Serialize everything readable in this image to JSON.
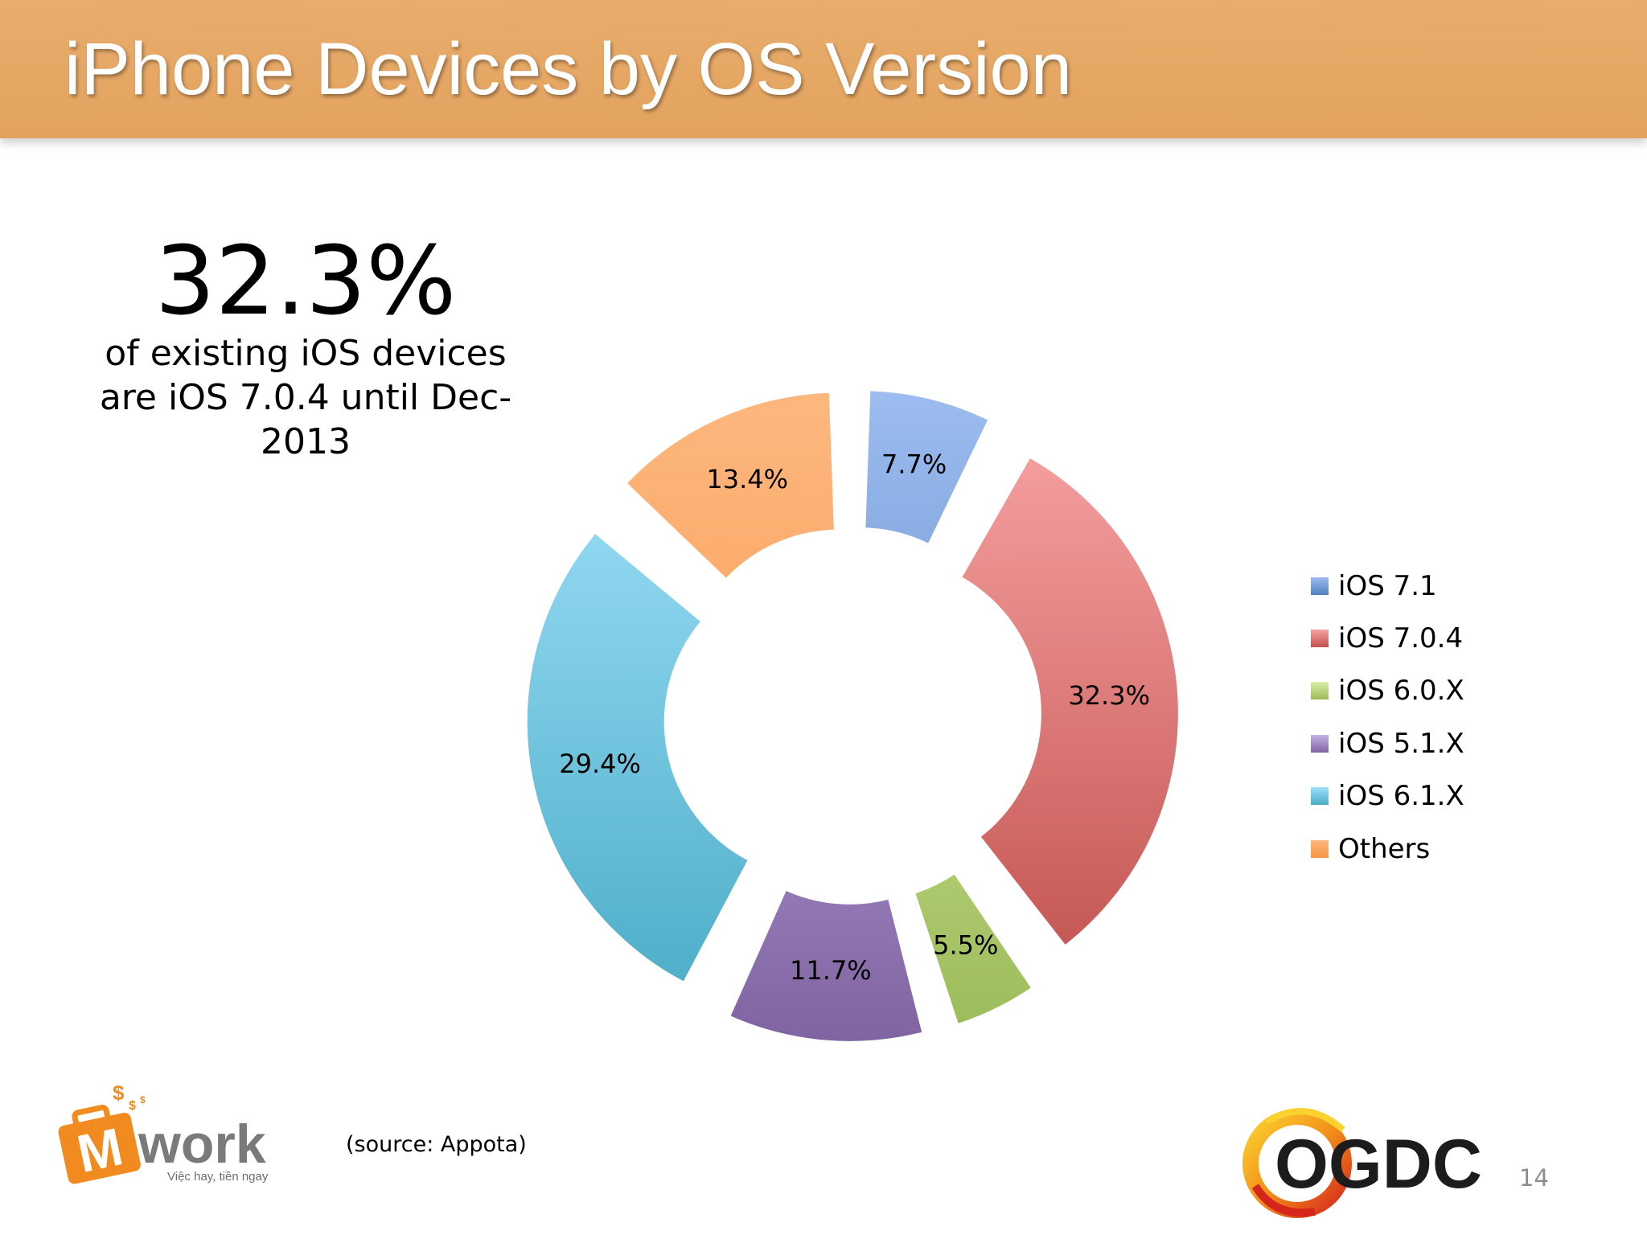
{
  "slide": {
    "title": "iPhone Devices by OS Version",
    "page_number": "14",
    "source_note": "(source: Appota)"
  },
  "highlight": {
    "value": "32.3%",
    "caption_line1": "of existing iOS devices",
    "caption_line2": "are iOS 7.0.4 until Dec-",
    "caption_line3": "2013"
  },
  "logos": {
    "mwork": {
      "wordmark": "Mwork",
      "tagline": "Việc hay, tiền ngay"
    },
    "ogdc": {
      "wordmark": "OGDC"
    }
  },
  "chart_data": {
    "type": "pie",
    "style": "exploded-doughnut",
    "categories": [
      "iOS 7.1",
      "iOS 7.0.4",
      "iOS 6.0.X",
      "iOS 5.1.X",
      "iOS 6.1.X",
      "Others"
    ],
    "values": [
      7.7,
      32.3,
      5.5,
      11.7,
      29.4,
      13.4
    ],
    "data_labels": [
      "7.7%",
      "32.3%",
      "5.5%",
      "11.7%",
      "29.4%",
      "13.4%"
    ],
    "colors": [
      "#4f81bd",
      "#c0504d",
      "#9bbb59",
      "#8064a2",
      "#4bacc6",
      "#f79646"
    ],
    "highlight_colors": [
      "#9dbcf0",
      "#f7a3a3",
      "#d9f0a7",
      "#c6b3e6",
      "#9fe0fa",
      "#fdb77f"
    ],
    "legend_position": "right"
  }
}
